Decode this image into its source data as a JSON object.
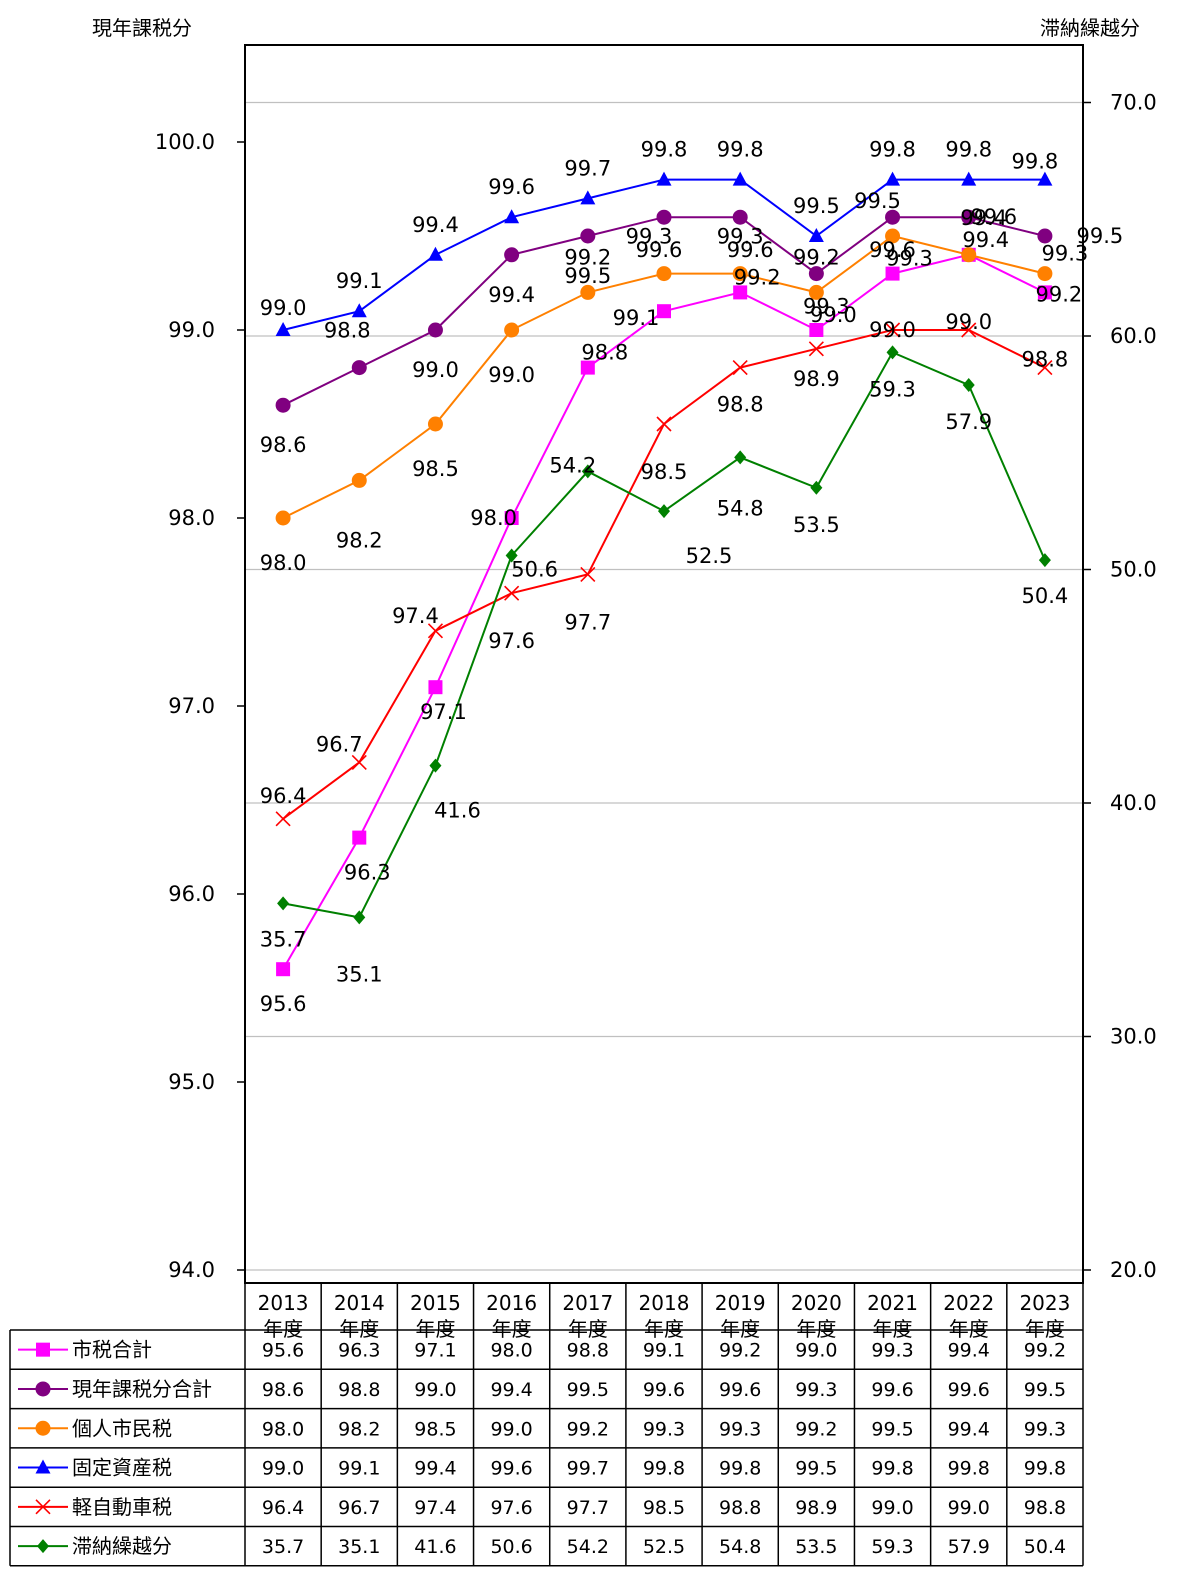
{
  "chart_data": {
    "type": "line",
    "y_left_title": "現年課税分",
    "y_right_title": "滞納繰越分",
    "ylim_left": [
      94.0,
      100.5
    ],
    "ylim_right": [
      20.0,
      72.0
    ],
    "yticks_left": [
      "94.0",
      "95.0",
      "96.0",
      "97.0",
      "98.0",
      "99.0",
      "100.0"
    ],
    "yticks_right": [
      "20.0",
      "30.0",
      "40.0",
      "50.0",
      "60.0",
      "70.0"
    ],
    "categories": [
      [
        "2013",
        "年度"
      ],
      [
        "2014",
        "年度"
      ],
      [
        "2015",
        "年度"
      ],
      [
        "2016",
        "年度"
      ],
      [
        "2017",
        "年度"
      ],
      [
        "2018",
        "年度"
      ],
      [
        "2019",
        "年度"
      ],
      [
        "2020",
        "年度"
      ],
      [
        "2021",
        "年度"
      ],
      [
        "2022",
        "年度"
      ],
      [
        "2023",
        "年度"
      ]
    ],
    "grid": true,
    "legend_placement": "data table below plot",
    "series": [
      {
        "name": "市税合計",
        "axis": "left",
        "color": "#ff00ff",
        "marker": "square",
        "values": [
          95.6,
          96.3,
          97.1,
          98.0,
          98.8,
          99.1,
          99.2,
          99.0,
          99.3,
          99.4,
          99.2
        ],
        "labels": [
          "95.6",
          "96.3",
          "97.1",
          "98.0",
          "98.8",
          "99.1",
          "99.2",
          "99.0",
          "99.3",
          "99.4",
          "99.2"
        ]
      },
      {
        "name": "現年課税分合計",
        "axis": "left",
        "color": "#800080",
        "marker": "circle",
        "values": [
          98.6,
          98.8,
          99.0,
          99.4,
          99.5,
          99.6,
          99.6,
          99.3,
          99.6,
          99.6,
          99.5
        ],
        "labels": [
          "98.6",
          "98.8",
          "99.0",
          "99.4",
          "99.5",
          "99.6",
          "99.6",
          "99.3",
          "99.6",
          "99.6",
          "99.5"
        ]
      },
      {
        "name": "個人市民税",
        "axis": "left",
        "color": "#ff8000",
        "marker": "circle",
        "values": [
          98.0,
          98.2,
          98.5,
          99.0,
          99.2,
          99.3,
          99.3,
          99.2,
          99.5,
          99.4,
          99.3
        ],
        "labels": [
          "98.0",
          "98.2",
          "98.5",
          "99.0",
          "99.2",
          "99.3",
          "99.3",
          "99.2",
          "99.5",
          "99.4",
          "99.3"
        ]
      },
      {
        "name": "固定資産税",
        "axis": "left",
        "color": "#0000ff",
        "marker": "triangle",
        "values": [
          99.0,
          99.1,
          99.4,
          99.6,
          99.7,
          99.8,
          99.8,
          99.5,
          99.8,
          99.8,
          99.8
        ],
        "labels": [
          "99.0",
          "99.1",
          "99.4",
          "99.6",
          "99.7",
          "99.8",
          "99.8",
          "99.5",
          "99.8",
          "99.8",
          "99.8"
        ]
      },
      {
        "name": "軽自動車税",
        "axis": "left",
        "color": "#ff0000",
        "marker": "x",
        "values": [
          96.4,
          96.7,
          97.4,
          97.6,
          97.7,
          98.5,
          98.8,
          98.9,
          99.0,
          99.0,
          98.8
        ],
        "labels": [
          "96.4",
          "96.7",
          "97.4",
          "97.6",
          "97.7",
          "98.5",
          "98.8",
          "98.9",
          "99.0",
          "99.0",
          "98.8"
        ]
      },
      {
        "name": "滞納繰越分",
        "axis": "right",
        "color": "#008000",
        "marker": "diamond",
        "values": [
          35.7,
          35.1,
          41.6,
          50.6,
          54.2,
          52.5,
          54.8,
          53.5,
          59.3,
          57.9,
          50.4
        ],
        "labels": [
          "35.7",
          "35.1",
          "41.6",
          "50.6",
          "54.2",
          "52.5",
          "54.8",
          "53.5",
          "59.3",
          "57.9",
          "50.4"
        ]
      }
    ]
  }
}
